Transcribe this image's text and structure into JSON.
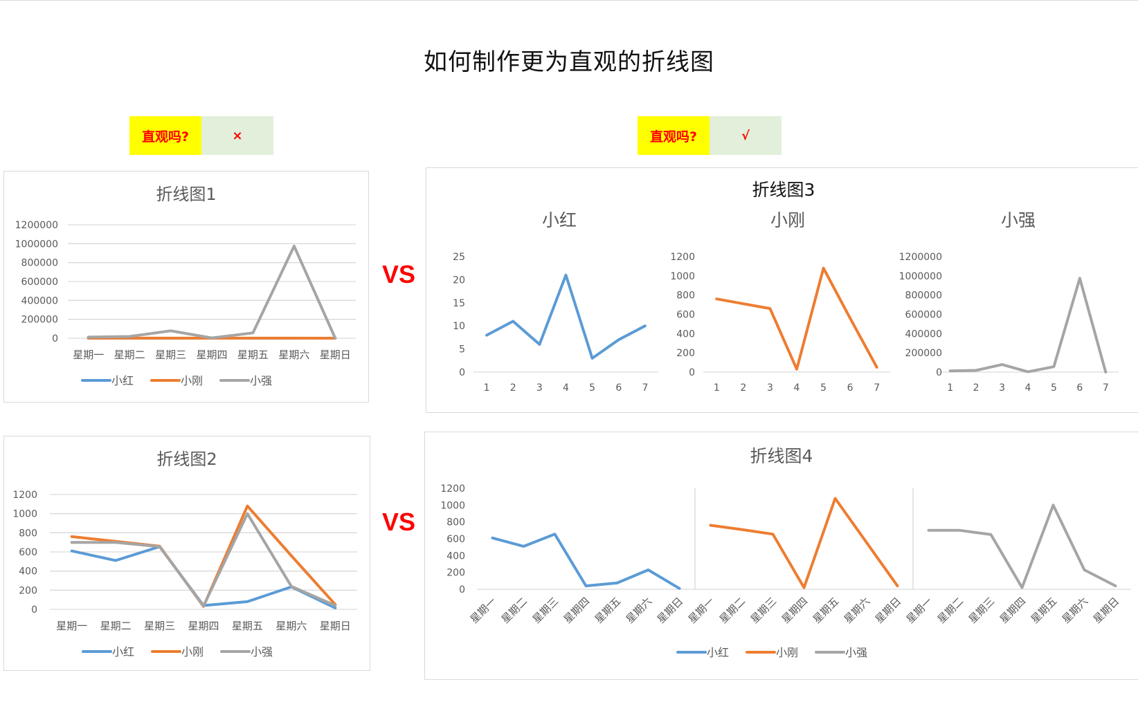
{
  "page": {
    "title": "如何制作更为直观的折线图",
    "left_question": "直观吗?",
    "left_answer": "×",
    "right_question": "直观吗?",
    "right_answer": "√",
    "vs_top": "VS",
    "vs_bottom": "VS"
  },
  "colors": {
    "小红": "#5b9bd5",
    "小刚": "#ed7d31",
    "小强": "#a5a5a5",
    "grid": "#d9d9d9",
    "text": "#595959",
    "title": "#595959",
    "question_bg": "#ffff00",
    "answer_bg": "#e2efda",
    "accent_red": "#ff0000"
  },
  "chart_data": [
    {
      "id": "chart1",
      "type": "line",
      "title": "折线图1",
      "categories": [
        "星期一",
        "星期二",
        "星期三",
        "星期四",
        "星期五",
        "星期六",
        "星期日"
      ],
      "series": [
        {
          "name": "小红",
          "values": [
            8,
            11,
            6,
            21,
            3,
            7,
            10
          ]
        },
        {
          "name": "小刚",
          "values": [
            760,
            710,
            660,
            30,
            1080,
            560,
            50
          ]
        },
        {
          "name": "小强",
          "values": [
            12000,
            18000,
            78000,
            3000,
            56000,
            975000,
            0
          ]
        }
      ],
      "yticks": [
        0,
        200000,
        400000,
        600000,
        800000,
        1000000,
        1200000
      ],
      "ylim": [
        0,
        1200000
      ],
      "legend": "bottom",
      "grid": true
    },
    {
      "id": "chart2",
      "type": "line",
      "title": "折线图2",
      "categories": [
        "星期一",
        "星期二",
        "星期三",
        "星期四",
        "星期五",
        "星期六",
        "星期日"
      ],
      "series": [
        {
          "name": "小红",
          "values": [
            610,
            510,
            655,
            40,
            80,
            235,
            15
          ]
        },
        {
          "name": "小刚",
          "values": [
            760,
            710,
            660,
            30,
            1080,
            560,
            50
          ]
        },
        {
          "name": "小强",
          "values": [
            700,
            700,
            655,
            35,
            1000,
            240,
            40
          ]
        }
      ],
      "yticks": [
        0,
        200,
        400,
        600,
        800,
        1000,
        1200
      ],
      "ylim": [
        0,
        1200
      ],
      "legend": "bottom",
      "grid": true
    },
    {
      "id": "chart3",
      "type": "line",
      "title": "折线图3",
      "subcharts": [
        {
          "title": "小红",
          "categories": [
            "1",
            "2",
            "3",
            "4",
            "5",
            "6",
            "7"
          ],
          "values": [
            8,
            11,
            6,
            21,
            3,
            7,
            10
          ],
          "yticks": [
            0,
            5,
            10,
            15,
            20,
            25
          ],
          "ylim": [
            0,
            25
          ]
        },
        {
          "title": "小刚",
          "categories": [
            "1",
            "2",
            "3",
            "4",
            "5",
            "6",
            "7"
          ],
          "values": [
            760,
            710,
            660,
            30,
            1080,
            560,
            50
          ],
          "yticks": [
            0,
            200,
            400,
            600,
            800,
            1000,
            1200
          ],
          "ylim": [
            0,
            1200
          ]
        },
        {
          "title": "小强",
          "categories": [
            "1",
            "2",
            "3",
            "4",
            "5",
            "6",
            "7"
          ],
          "values": [
            12000,
            18000,
            78000,
            3000,
            56000,
            975000,
            0
          ],
          "yticks": [
            0,
            200000,
            400000,
            600000,
            800000,
            1000000,
            1200000
          ],
          "ylim": [
            0,
            1200000
          ]
        }
      ],
      "grid": false
    },
    {
      "id": "chart4",
      "type": "line",
      "title": "折线图4",
      "categories": [
        "星期一",
        "星期二",
        "星期三",
        "星期四",
        "星期五",
        "星期六",
        "星期日"
      ],
      "series": [
        {
          "name": "小红",
          "values": [
            610,
            510,
            655,
            40,
            75,
            230,
            10
          ]
        },
        {
          "name": "小刚",
          "values": [
            760,
            710,
            655,
            20,
            1080,
            560,
            40
          ]
        },
        {
          "name": "小强",
          "values": [
            700,
            700,
            650,
            20,
            1000,
            230,
            40
          ]
        }
      ],
      "yticks": [
        0,
        200,
        400,
        600,
        800,
        1000,
        1200
      ],
      "ylim": [
        0,
        1200
      ],
      "legend": "bottom",
      "grid": false
    }
  ]
}
